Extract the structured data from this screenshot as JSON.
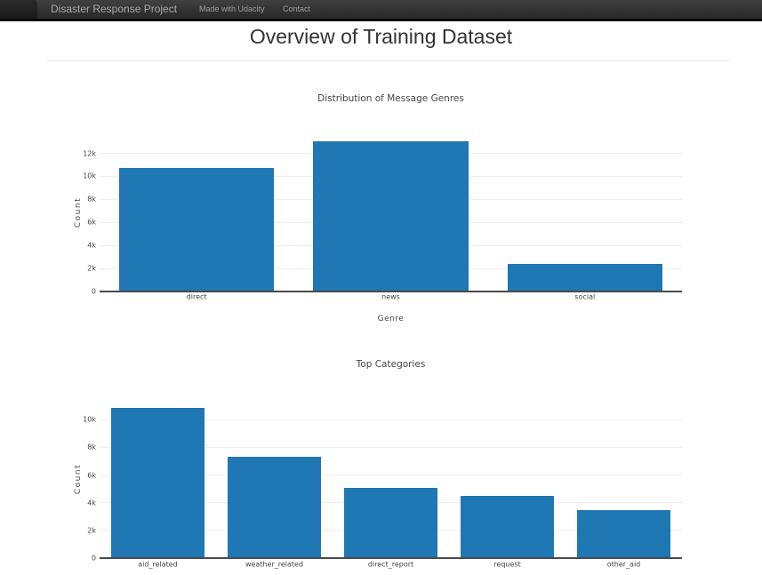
{
  "navbar": {
    "brand": "Disaster Response Project",
    "links": [
      {
        "label": "Made with Udacity"
      },
      {
        "label": "Contact"
      }
    ]
  },
  "page": {
    "title": "Overview of Training Dataset"
  },
  "colors": {
    "bar": "#1f77b4",
    "navbar_bg_top": "#404040",
    "navbar_bg_bottom": "#252525",
    "navbar_text": "#9d9d9d",
    "chart_text": "#444444",
    "gridline": "#ececec",
    "axis_line": "#4a4a4a",
    "heading_text": "#333333"
  },
  "chart_data": [
    {
      "type": "bar",
      "title": "Distribution of Message Genres",
      "xlabel": "Genre",
      "ylabel": "Count",
      "categories": [
        "direct",
        "news",
        "social"
      ],
      "values": [
        10766,
        13054,
        2396
      ],
      "ylim": [
        0,
        13741
      ],
      "yticks": [
        0,
        2000,
        4000,
        6000,
        8000,
        10000,
        12000
      ],
      "ytick_labels": [
        "0",
        "2k",
        "4k",
        "6k",
        "8k",
        "10k",
        "12k"
      ],
      "grid": true,
      "legend": "none",
      "bar_color": "#1f77b4"
    },
    {
      "type": "bar",
      "title": "Top Categories",
      "xlabel": "",
      "ylabel": "Count",
      "categories": [
        "aid_related",
        "weather_related",
        "direct_report",
        "request",
        "other_aid"
      ],
      "values": [
        10860,
        7297,
        5075,
        4474,
        3446
      ],
      "ylim": [
        0,
        11431
      ],
      "yticks": [
        0,
        2000,
        4000,
        6000,
        8000,
        10000
      ],
      "ytick_labels": [
        "0",
        "2k",
        "4k",
        "6k",
        "8k",
        "10k"
      ],
      "grid": true,
      "legend": "none",
      "bar_color": "#1f77b4"
    }
  ]
}
